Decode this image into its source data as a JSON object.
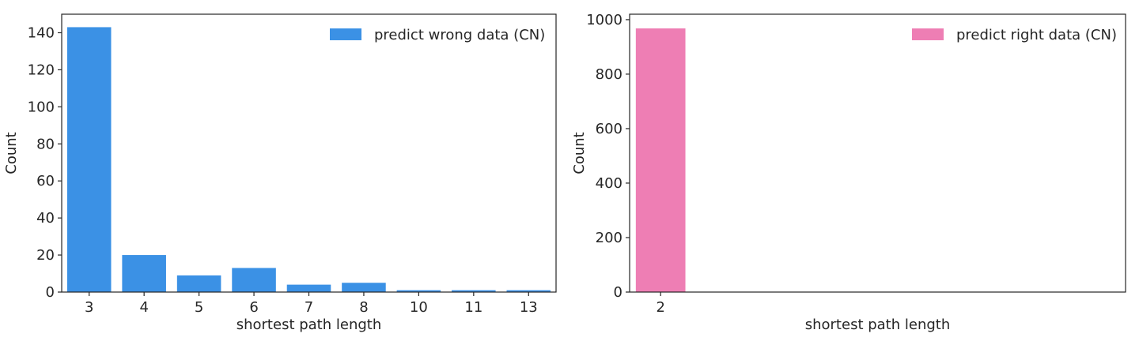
{
  "chart_data": [
    {
      "type": "bar",
      "categories": [
        "3",
        "4",
        "5",
        "6",
        "7",
        "8",
        "10",
        "11",
        "13"
      ],
      "values": [
        143,
        20,
        9,
        13,
        4,
        5,
        1,
        1,
        1
      ],
      "xlabel": "shortest path length",
      "ylabel": "Count",
      "ylim": [
        0,
        150
      ],
      "yticks": [
        0,
        20,
        40,
        60,
        80,
        100,
        120,
        140
      ],
      "legend": "predict wrong data (CN)",
      "legend_position": "top-right",
      "color": "#3b91e5",
      "grid": false
    },
    {
      "type": "bar",
      "categories": [
        "2"
      ],
      "values": [
        968
      ],
      "xlabel": "shortest path length",
      "ylabel": "Count",
      "ylim": [
        0,
        1020
      ],
      "yticks": [
        0,
        200,
        400,
        600,
        800,
        1000
      ],
      "legend": "predict right data (CN)",
      "legend_position": "top-right",
      "color": "#ee7eb4",
      "grid": false
    }
  ]
}
